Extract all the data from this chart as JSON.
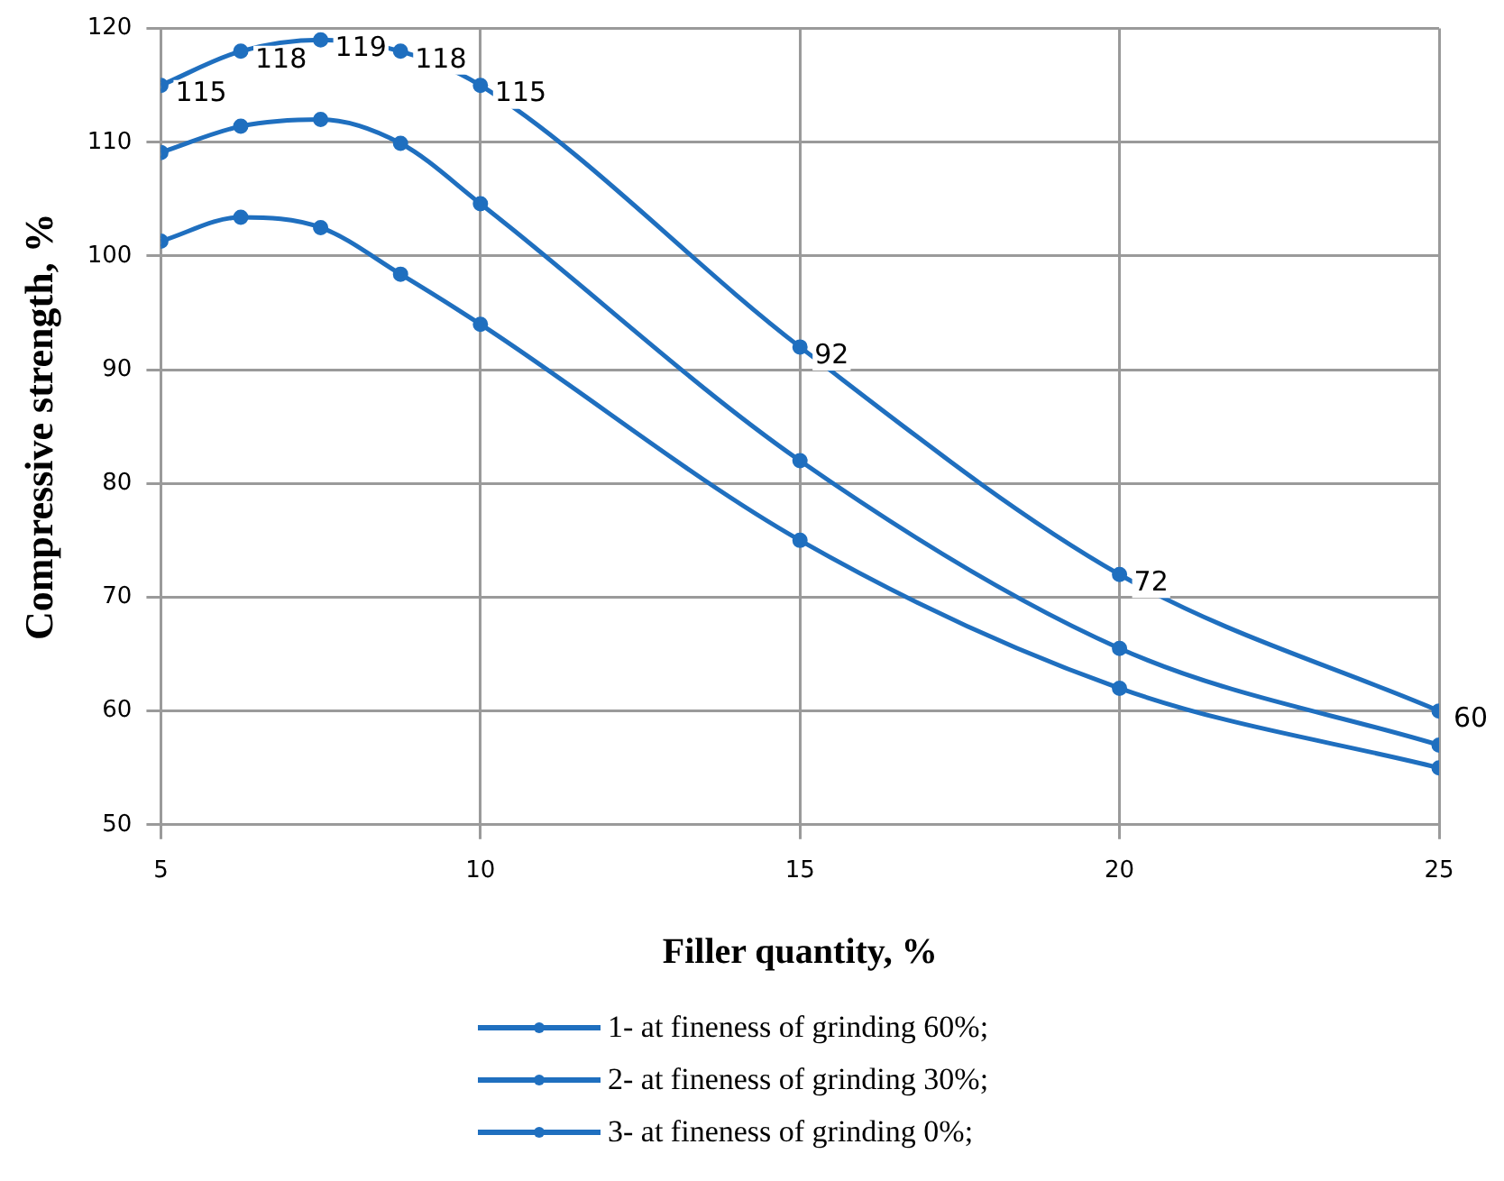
{
  "chart_data": {
    "type": "line",
    "xlabel": "Filler quantity, %",
    "ylabel": "Compressive strength, %",
    "x": [
      5,
      6.25,
      7.5,
      8.75,
      10,
      15,
      20,
      25
    ],
    "series": [
      {
        "name": "1- at fineness of grinding 60%;",
        "color": "#1f6fbf",
        "values": [
          115,
          118,
          119,
          118,
          115,
          92,
          72,
          60
        ],
        "value_labels": [
          "115",
          "118",
          "119",
          "118",
          "115",
          "92",
          "72",
          "60"
        ]
      },
      {
        "name": "2- at fineness of grinding 30%;",
        "color": "#1f6fbf",
        "values": [
          109.1,
          111.4,
          112,
          109.9,
          104.6,
          82,
          65.5,
          57
        ]
      },
      {
        "name": "3- at fineness of grinding 0%;",
        "color": "#1f6fbf",
        "values": [
          101.3,
          103.4,
          102.5,
          98.4,
          94,
          75,
          62,
          55
        ]
      }
    ],
    "xlim": [
      5,
      25
    ],
    "xticks": [
      5,
      10,
      15,
      20,
      25
    ],
    "ylim": [
      50,
      120
    ],
    "yticks": [
      50,
      60,
      70,
      80,
      90,
      100,
      110,
      120
    ],
    "grid": true,
    "legend": "bottom",
    "marker": "circle",
    "line_style": "solid"
  }
}
